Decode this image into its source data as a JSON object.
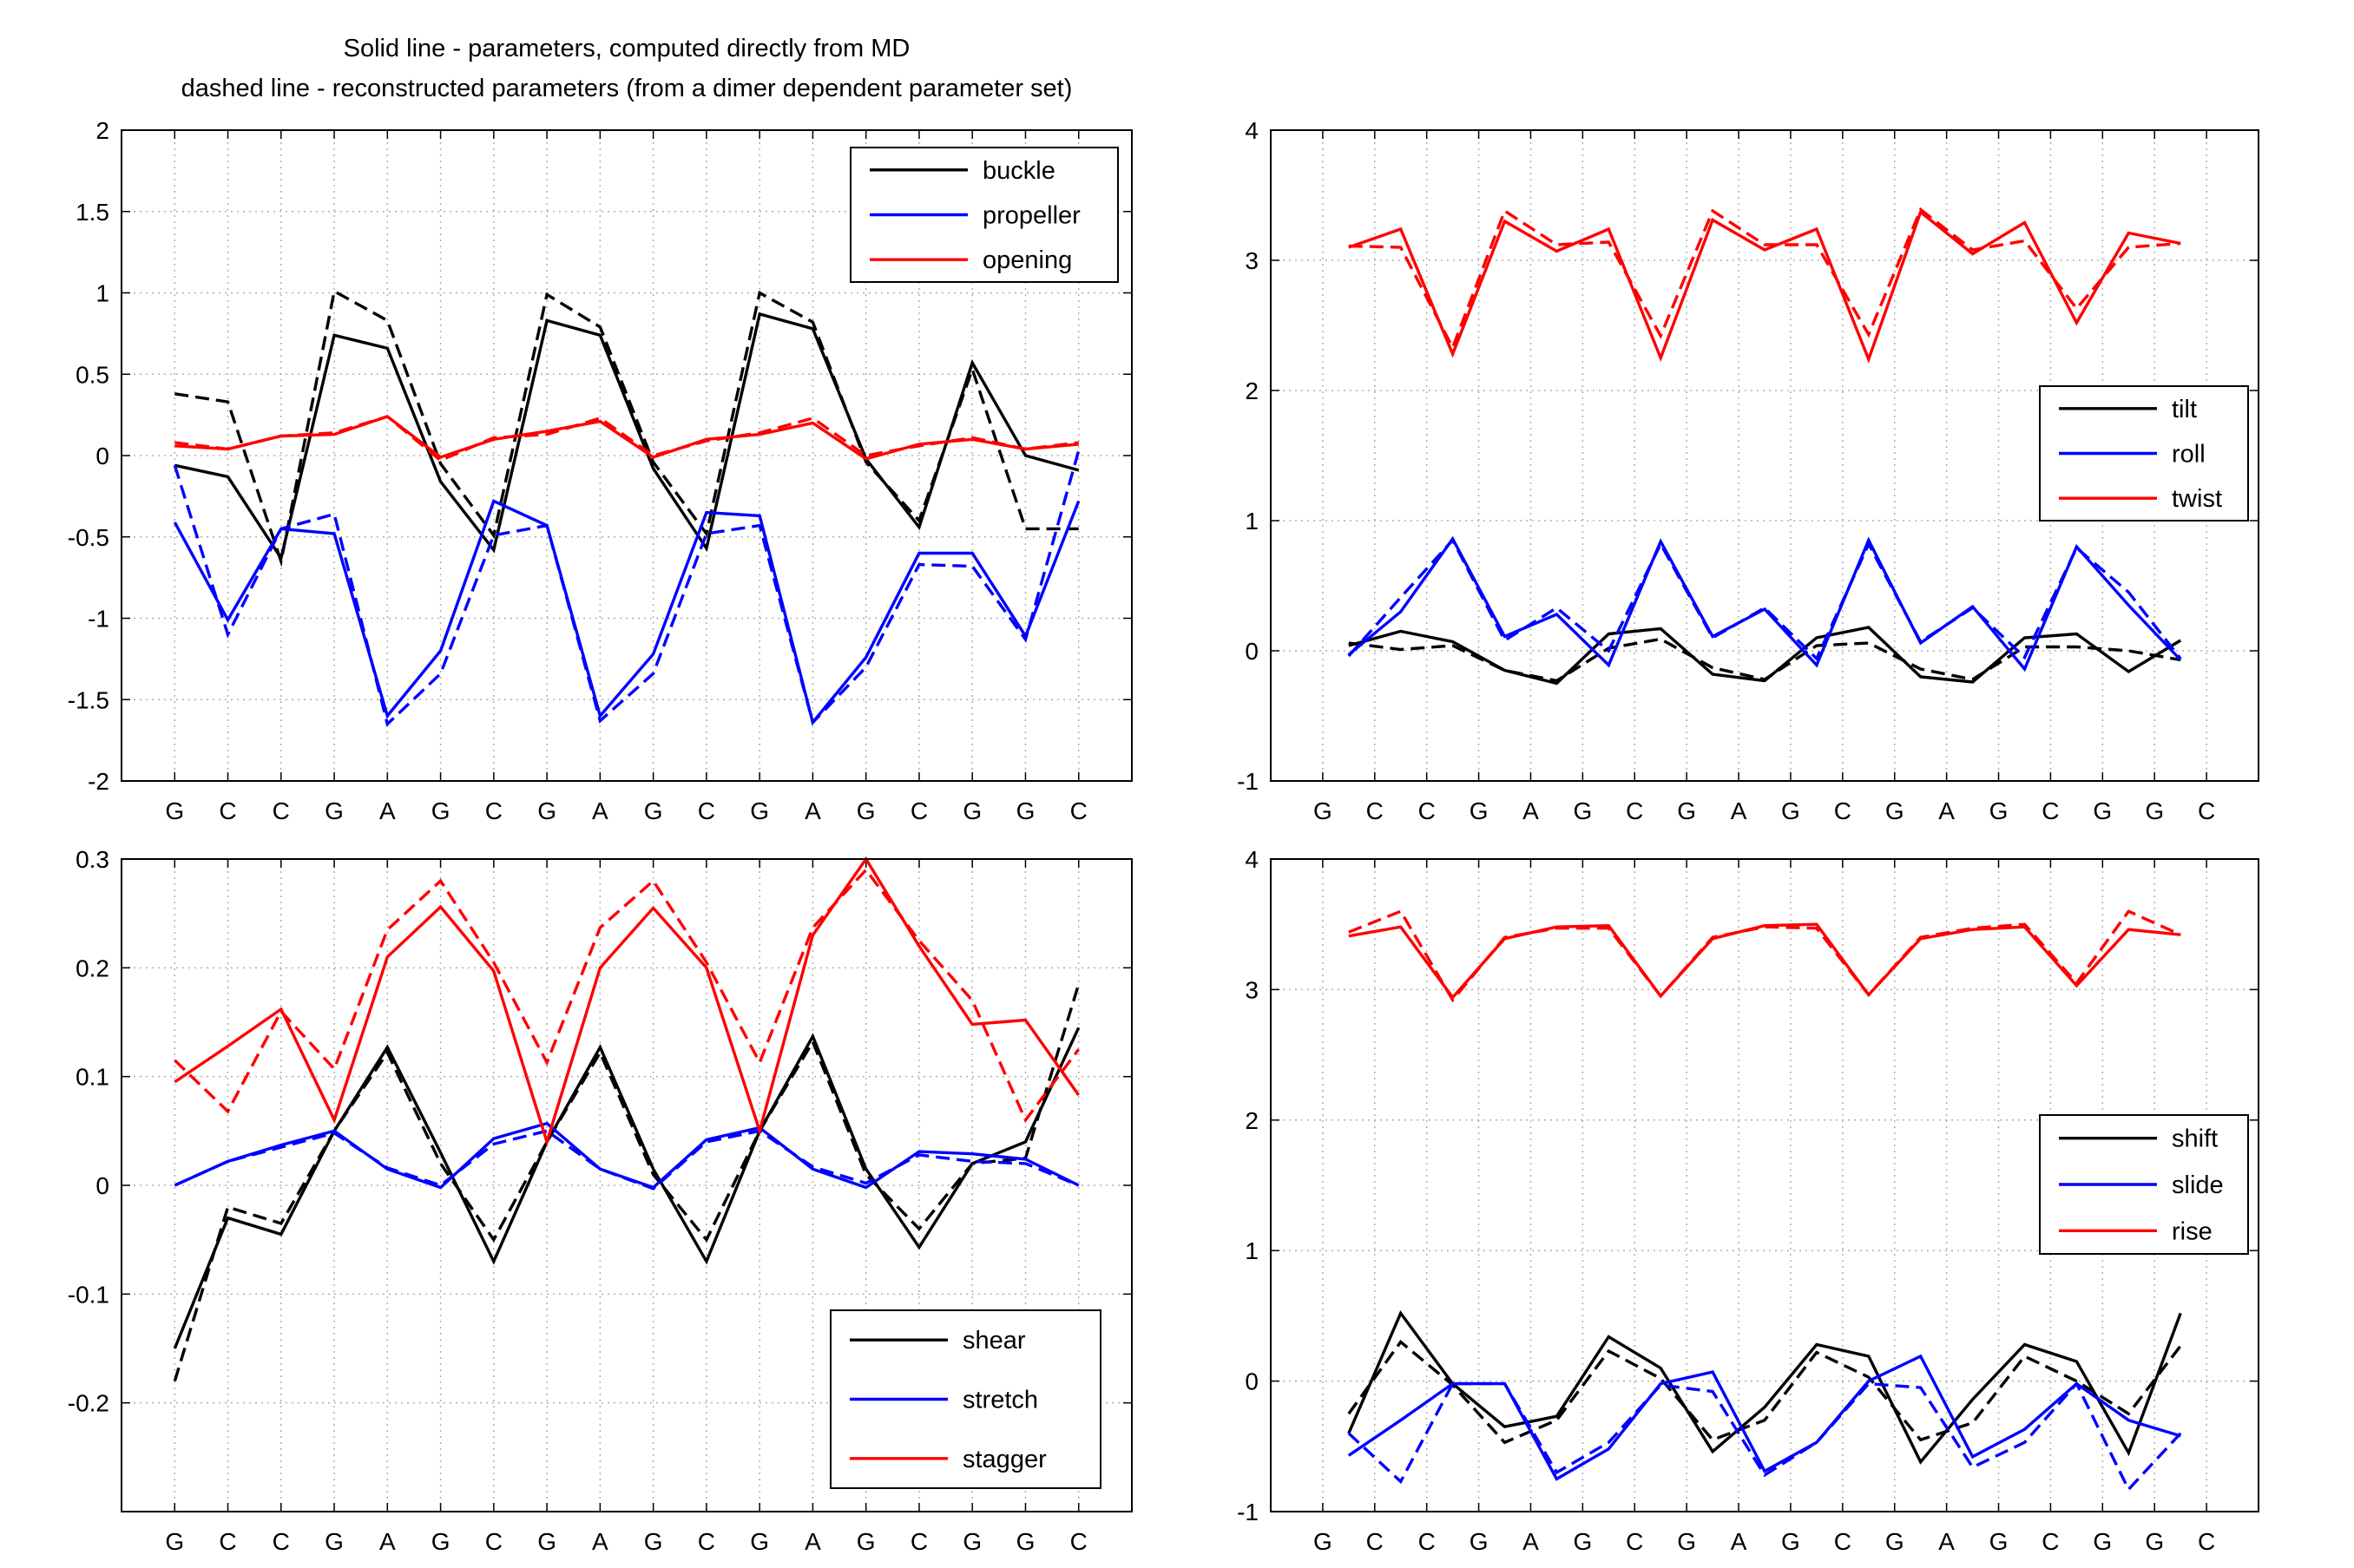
{
  "header": {
    "title_line1": "Solid line - parameters, computed directly from MD",
    "title_line2": "dashed line - reconstructed parameters (from a dimer dependent parameter set)"
  },
  "colors": {
    "black": "#000000",
    "blue": "#0000ff",
    "red": "#ff0000",
    "grid": "#b0b0b0"
  },
  "chart_data": [
    {
      "type": "line",
      "categories": [
        "G",
        "C",
        "C",
        "G",
        "A",
        "G",
        "C",
        "G",
        "A",
        "G",
        "C",
        "G",
        "A",
        "G",
        "C",
        "G",
        "G",
        "C"
      ],
      "ylim": [
        -2,
        2
      ],
      "yticks": [
        -2,
        -1.5,
        -1,
        -0.5,
        0,
        0.5,
        1,
        1.5,
        2
      ],
      "ytick_labels": [
        "-2",
        "-1.5",
        "-1",
        "-0.5",
        "0",
        "0.5",
        "1",
        "1.5",
        "2"
      ],
      "grid": true,
      "legend_position": "top-right",
      "series": [
        {
          "name": "buckle",
          "color": "#000000",
          "solid": [
            -0.06,
            -0.13,
            -0.63,
            0.74,
            0.66,
            -0.16,
            -0.58,
            0.83,
            0.74,
            -0.08,
            -0.57,
            0.87,
            0.78,
            -0.02,
            -0.44,
            0.57,
            0.0,
            -0.09
          ],
          "dashed": [
            0.38,
            0.33,
            -0.65,
            1.01,
            0.83,
            -0.05,
            -0.49,
            0.99,
            0.79,
            -0.04,
            -0.48,
            1.0,
            0.82,
            -0.04,
            -0.4,
            0.53,
            -0.45,
            -0.45
          ]
        },
        {
          "name": "propeller",
          "color": "#0000ff",
          "solid": [
            -0.41,
            -1.01,
            -0.45,
            -0.48,
            -1.6,
            -1.2,
            -0.28,
            -0.43,
            -1.6,
            -1.22,
            -0.35,
            -0.37,
            -1.64,
            -1.24,
            -0.6,
            -0.6,
            -1.11,
            -0.28
          ],
          "dashed": [
            -0.06,
            -1.1,
            -0.45,
            -0.36,
            -1.65,
            -1.34,
            -0.49,
            -0.43,
            -1.63,
            -1.34,
            -0.48,
            -0.43,
            -1.64,
            -1.3,
            -0.67,
            -0.68,
            -1.13,
            0.03
          ]
        },
        {
          "name": "opening",
          "color": "#ff0000",
          "solid": [
            0.06,
            0.04,
            0.12,
            0.13,
            0.24,
            -0.01,
            0.1,
            0.15,
            0.21,
            -0.01,
            0.1,
            0.13,
            0.2,
            -0.02,
            0.07,
            0.1,
            0.04,
            0.07
          ],
          "dashed": [
            0.08,
            0.04,
            0.12,
            0.14,
            0.24,
            -0.03,
            0.11,
            0.13,
            0.23,
            0.0,
            0.09,
            0.14,
            0.23,
            0.0,
            0.06,
            0.11,
            0.04,
            0.08
          ]
        }
      ]
    },
    {
      "type": "line",
      "categories": [
        "G",
        "C",
        "C",
        "G",
        "A",
        "G",
        "C",
        "G",
        "A",
        "G",
        "C",
        "G",
        "A",
        "G",
        "C",
        "G",
        "G",
        "C"
      ],
      "ylim": [
        -1,
        4
      ],
      "yticks": [
        -1,
        0,
        1,
        2,
        3,
        4
      ],
      "ytick_labels": [
        "-1",
        "0",
        "1",
        "2",
        "3",
        "4"
      ],
      "grid": true,
      "legend_position": "right",
      "series": [
        {
          "name": "tilt",
          "color": "#000000",
          "solid": [
            0.04,
            0.15,
            0.07,
            -0.15,
            -0.25,
            0.13,
            0.17,
            -0.18,
            -0.23,
            0.1,
            0.18,
            -0.2,
            -0.24,
            0.1,
            0.13,
            -0.16,
            0.08
          ],
          "dashed": [
            0.06,
            0.01,
            0.04,
            -0.15,
            -0.23,
            0.02,
            0.09,
            -0.13,
            -0.22,
            0.04,
            0.06,
            -0.14,
            -0.22,
            0.03,
            0.03,
            0.0,
            -0.07
          ]
        },
        {
          "name": "roll",
          "color": "#0000ff",
          "solid": [
            -0.03,
            0.3,
            0.86,
            0.11,
            0.28,
            -0.11,
            0.84,
            0.11,
            0.32,
            -0.11,
            0.85,
            0.06,
            0.34,
            -0.14,
            0.8,
            0.35,
            -0.07
          ],
          "dashed": [
            -0.04,
            0.41,
            0.85,
            0.08,
            0.33,
            0.0,
            0.82,
            0.1,
            0.33,
            -0.06,
            0.82,
            0.07,
            0.33,
            -0.05,
            0.79,
            0.45,
            -0.06
          ]
        },
        {
          "name": "twist",
          "color": "#ff0000",
          "solid": [
            3.1,
            3.24,
            2.28,
            3.3,
            3.07,
            3.24,
            2.25,
            3.31,
            3.08,
            3.24,
            2.24,
            3.37,
            3.05,
            3.29,
            2.52,
            3.21,
            3.13
          ],
          "dashed": [
            3.11,
            3.1,
            2.33,
            3.38,
            3.12,
            3.14,
            2.42,
            3.38,
            3.12,
            3.12,
            2.43,
            3.39,
            3.08,
            3.15,
            2.63,
            3.1,
            3.13
          ]
        }
      ]
    },
    {
      "type": "line",
      "categories": [
        "G",
        "C",
        "C",
        "G",
        "A",
        "G",
        "C",
        "G",
        "A",
        "G",
        "C",
        "G",
        "A",
        "G",
        "C",
        "G",
        "G",
        "C"
      ],
      "ylim": [
        -0.3,
        0.3
      ],
      "yticks": [
        -0.2,
        -0.1,
        0,
        0.1,
        0.2,
        0.3
      ],
      "ytick_labels": [
        "-0.2",
        "-0.1",
        "0",
        "0.1",
        "0.2",
        "0.3"
      ],
      "grid": true,
      "legend_position": "bottom-right",
      "series": [
        {
          "name": "shear",
          "color": "#000000",
          "solid": [
            -0.15,
            -0.03,
            -0.045,
            0.05,
            0.127,
            0.03,
            -0.07,
            0.04,
            0.127,
            0.015,
            -0.07,
            0.05,
            0.137,
            0.015,
            -0.057,
            0.02,
            0.04,
            0.145
          ],
          "dashed": [
            -0.18,
            -0.02,
            -0.035,
            0.05,
            0.122,
            0.02,
            -0.05,
            0.04,
            0.122,
            0.01,
            -0.05,
            0.05,
            0.132,
            0.01,
            -0.04,
            0.02,
            0.025,
            0.185
          ]
        },
        {
          "name": "stretch",
          "color": "#0000ff",
          "solid": [
            0.0,
            0.022,
            0.037,
            0.05,
            0.015,
            -0.002,
            0.043,
            0.057,
            0.015,
            -0.002,
            0.042,
            0.053,
            0.015,
            -0.002,
            0.031,
            0.029,
            0.024,
            0.0
          ],
          "dashed": [
            0.0,
            0.022,
            0.035,
            0.048,
            0.016,
            0.0,
            0.038,
            0.05,
            0.015,
            -0.003,
            0.04,
            0.05,
            0.017,
            0.002,
            0.028,
            0.022,
            0.02,
            0.0
          ]
        },
        {
          "name": "stagger",
          "color": "#ff0000",
          "solid": [
            0.095,
            0.128,
            0.162,
            0.06,
            0.21,
            0.256,
            0.197,
            0.04,
            0.2,
            0.255,
            0.2,
            0.05,
            0.23,
            0.3,
            0.22,
            0.148,
            0.152,
            0.083
          ],
          "dashed": [
            0.115,
            0.068,
            0.16,
            0.107,
            0.235,
            0.28,
            0.205,
            0.113,
            0.237,
            0.28,
            0.205,
            0.113,
            0.237,
            0.29,
            0.225,
            0.17,
            0.06,
            0.125
          ]
        }
      ]
    },
    {
      "type": "line",
      "categories": [
        "G",
        "C",
        "C",
        "G",
        "A",
        "G",
        "C",
        "G",
        "A",
        "G",
        "C",
        "G",
        "A",
        "G",
        "C",
        "G",
        "G",
        "C"
      ],
      "ylim": [
        -1,
        4
      ],
      "yticks": [
        -1,
        0,
        1,
        2,
        3,
        4
      ],
      "ytick_labels": [
        "-1",
        "0",
        "1",
        "2",
        "3",
        "4"
      ],
      "grid": true,
      "legend_position": "right",
      "series": [
        {
          "name": "shift",
          "color": "#000000",
          "solid": [
            -0.4,
            0.52,
            -0.02,
            -0.35,
            -0.27,
            0.34,
            0.1,
            -0.54,
            -0.2,
            0.28,
            0.19,
            -0.62,
            -0.14,
            0.28,
            0.15,
            -0.55,
            0.52
          ],
          "dashed": [
            -0.25,
            0.3,
            -0.03,
            -0.47,
            -0.3,
            0.23,
            0.02,
            -0.45,
            -0.3,
            0.22,
            0.03,
            -0.45,
            -0.32,
            0.19,
            0.0,
            -0.25,
            0.27
          ]
        },
        {
          "name": "slide",
          "color": "#0000ff",
          "solid": [
            -0.57,
            -0.3,
            -0.02,
            -0.02,
            -0.75,
            -0.52,
            -0.02,
            0.07,
            -0.69,
            -0.47,
            0.0,
            0.19,
            -0.58,
            -0.37,
            -0.02,
            -0.3,
            -0.42
          ]
        },
        {
          "name": "rise",
          "color": "#ff0000",
          "solid": [
            3.41,
            3.48,
            2.94,
            3.39,
            3.48,
            3.49,
            2.95,
            3.39,
            3.49,
            3.5,
            2.96,
            3.39,
            3.46,
            3.48,
            3.03,
            3.46,
            3.42
          ],
          "dashed": [
            3.44,
            3.6,
            2.92,
            3.4,
            3.47,
            3.47,
            2.95,
            3.4,
            3.48,
            3.47,
            2.96,
            3.4,
            3.47,
            3.5,
            3.05,
            3.6,
            3.42
          ]
        }
      ],
      "extra_dashed": {
        "name": "slide",
        "color": "#0000ff",
        "values": [
          -0.4,
          -0.77,
          -0.02,
          -0.02,
          -0.7,
          -0.47,
          -0.03,
          -0.08,
          -0.72,
          -0.47,
          -0.02,
          -0.05,
          -0.66,
          -0.47,
          -0.02,
          -0.83,
          -0.4
        ]
      }
    }
  ]
}
